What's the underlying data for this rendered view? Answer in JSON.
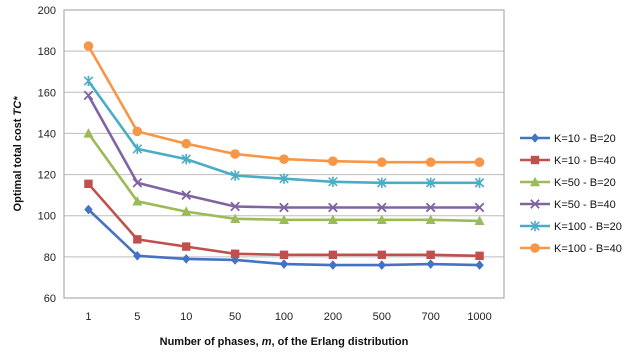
{
  "chart_data": {
    "type": "line",
    "title": "",
    "xlabel_parts": [
      "Number of phases, ",
      "m",
      ", of the Erlang distribution"
    ],
    "ylabel_parts": [
      "Optimal total cost ",
      "TC*"
    ],
    "categories": [
      "1",
      "5",
      "10",
      "50",
      "100",
      "200",
      "500",
      "700",
      "1000"
    ],
    "ylim": [
      60,
      200
    ],
    "yticks": [
      60,
      80,
      100,
      120,
      140,
      160,
      180,
      200
    ],
    "grid": true,
    "legend_position": "right",
    "series": [
      {
        "name": "K=10 - B=20",
        "color": "#4472C4",
        "marker": "diamond",
        "values": [
          103,
          80.5,
          79,
          78.5,
          76.5,
          76,
          76,
          76.5,
          76
        ]
      },
      {
        "name": "K=10 - B=40",
        "color": "#C0504D",
        "marker": "square",
        "values": [
          115.5,
          88.5,
          85,
          81.5,
          81,
          81,
          81,
          81,
          80.5
        ]
      },
      {
        "name": "K=50 - B=20",
        "color": "#9BBB59",
        "marker": "triangle",
        "values": [
          140,
          107,
          102,
          98.5,
          98,
          98,
          98,
          98,
          97.5
        ]
      },
      {
        "name": "K=50 - B=40",
        "color": "#8064A2",
        "marker": "x",
        "values": [
          158.5,
          116,
          110,
          104.5,
          104,
          104,
          104,
          104,
          104
        ]
      },
      {
        "name": "K=100 - B=20",
        "color": "#4BACC6",
        "marker": "star",
        "values": [
          165.5,
          132.5,
          127.5,
          119.5,
          118,
          116.5,
          116,
          116,
          116
        ]
      },
      {
        "name": "K=100 - B=40",
        "color": "#F79646",
        "marker": "circle",
        "values": [
          182.5,
          141,
          135,
          130,
          127.5,
          126.5,
          126,
          126,
          126
        ]
      }
    ]
  }
}
